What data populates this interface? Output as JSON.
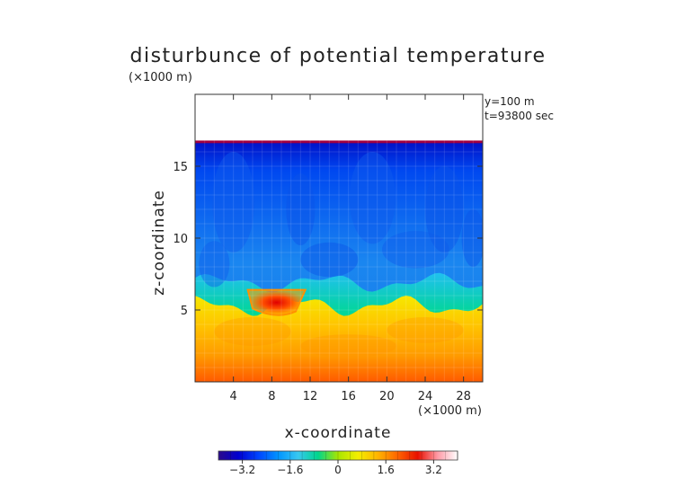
{
  "chart_data": {
    "type": "heatmap",
    "title": "disturbunce of potential temperature",
    "xlabel": "x-coordinate",
    "ylabel": "z-coordinate",
    "x_unit": "(×1000 m)",
    "y_unit": "(×1000 m)",
    "xlim": [
      0,
      30
    ],
    "ylim": [
      0,
      20
    ],
    "xticks": [
      4,
      8,
      12,
      16,
      20,
      24,
      28
    ],
    "yticks": [
      5,
      10,
      15
    ],
    "xtick_labels": [
      "4",
      "8",
      "12",
      "16",
      "20",
      "24",
      "28"
    ],
    "ytick_labels": [
      "5",
      "10",
      "15"
    ],
    "annotations": [
      "y=100 m",
      "t=93800 sec"
    ],
    "colorbar": {
      "min": -4,
      "max": 4,
      "ticks": [
        -3.2,
        -1.6,
        0,
        1.6,
        3.2
      ],
      "tick_labels": [
        "−3.2",
        "−1.6",
        "0",
        "1.6",
        "3.2"
      ],
      "colors": [
        "#2b0a8a",
        "#0000d0",
        "#0044ff",
        "#0094ff",
        "#38c8f0",
        "#00d68c",
        "#a8e600",
        "#f4ee00",
        "#ffb400",
        "#ff6400",
        "#e81000",
        "#ff9aa6",
        "#ffffff"
      ]
    },
    "field_summary": {
      "top_boundary_z": 16.7,
      "lower_layer_top_z": 5.5,
      "upper_layer_value_range": [
        -2.8,
        -1.6
      ],
      "lower_layer_value_range": [
        1.6,
        3.2
      ],
      "peak_anomaly": {
        "x": 8.5,
        "z": 5.5,
        "value": 3.5
      }
    }
  }
}
